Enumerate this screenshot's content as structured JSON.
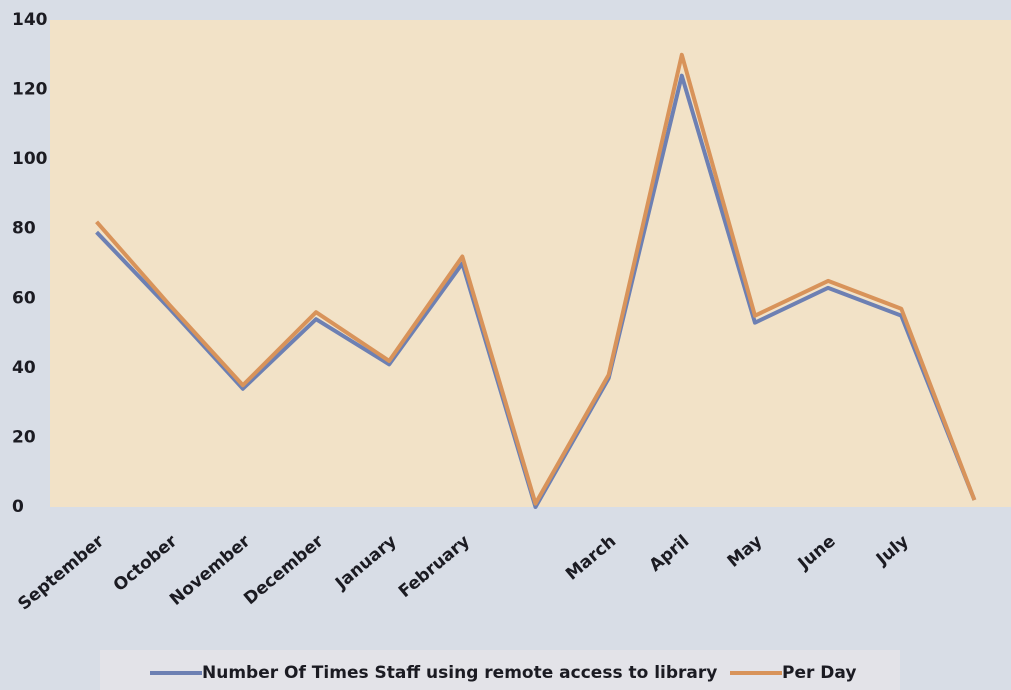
{
  "chart_data": {
    "type": "line",
    "categories": [
      "September",
      "October",
      "November",
      "December",
      "January",
      "February",
      null,
      "March",
      "April",
      "May",
      "June",
      "July",
      null
    ],
    "series": [
      {
        "name": "Number Of Times Staff using remote access to library",
        "color": "#6d80b3",
        "values": [
          79,
          57,
          34,
          54,
          41,
          70,
          0,
          37,
          124,
          53,
          63,
          55,
          2
        ]
      },
      {
        "name": "Per Day",
        "color": "#d8935a",
        "values": [
          82,
          58,
          35,
          56,
          42,
          72,
          1,
          38,
          130,
          55,
          65,
          57,
          2
        ]
      }
    ],
    "ylim": [
      0,
      140
    ],
    "yticks": [
      0,
      20,
      40,
      60,
      80,
      100,
      120,
      140
    ],
    "grid": false
  }
}
